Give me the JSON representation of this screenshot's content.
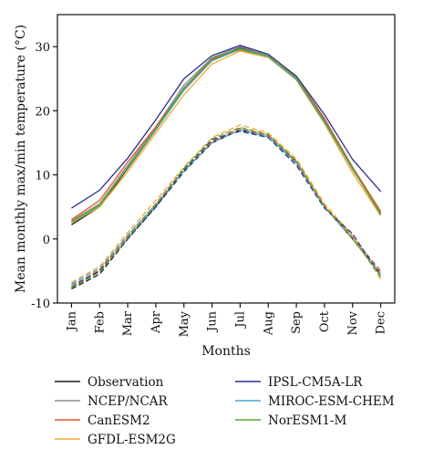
{
  "chart_data": {
    "type": "line",
    "title": "",
    "xlabel": "Months",
    "ylabel": "Mean monthly max/min temperature (°C)",
    "categories": [
      "Jan",
      "Feb",
      "Mar",
      "Apr",
      "May",
      "Jun",
      "Jul",
      "Aug",
      "Sep",
      "Oct",
      "Nov",
      "Dec"
    ],
    "ylim": [
      -10,
      35
    ],
    "yticks": [
      -10,
      0,
      10,
      20,
      30
    ],
    "grid": false,
    "legend_position": "bottom",
    "series": [
      {
        "name": "Observation",
        "color": "#1a1a1a",
        "max": [
          2.2,
          5.0,
          11.0,
          17.0,
          23.5,
          28.0,
          29.8,
          28.5,
          25.0,
          18.5,
          11.0,
          4.0
        ],
        "min": [
          -7.8,
          -5.5,
          0.0,
          5.0,
          10.5,
          15.0,
          17.0,
          16.0,
          12.0,
          5.0,
          0.0,
          -5.5
        ]
      },
      {
        "name": "NCEP/NCAR",
        "color": "#8c8c8c",
        "max": [
          2.8,
          5.5,
          11.5,
          17.5,
          24.0,
          28.3,
          30.0,
          28.6,
          25.0,
          18.3,
          10.8,
          4.2
        ],
        "min": [
          -7.2,
          -5.0,
          0.3,
          5.2,
          10.8,
          15.3,
          17.2,
          16.0,
          11.8,
          5.0,
          0.2,
          -5.3
        ]
      },
      {
        "name": "CanESM2",
        "color": "#e2532a",
        "max": [
          3.0,
          6.0,
          12.0,
          17.5,
          23.5,
          28.0,
          29.5,
          28.4,
          25.3,
          18.8,
          11.2,
          4.3
        ],
        "min": [
          -7.5,
          -4.8,
          0.5,
          5.5,
          11.0,
          15.2,
          17.3,
          16.2,
          12.2,
          5.2,
          0.3,
          -5.0
        ]
      },
      {
        "name": "GFDL-ESM2G",
        "color": "#f2a930",
        "max": [
          2.5,
          5.0,
          10.5,
          16.5,
          22.5,
          27.3,
          29.3,
          28.3,
          24.8,
          18.0,
          10.3,
          3.6
        ],
        "min": [
          -6.8,
          -4.3,
          1.0,
          6.0,
          11.2,
          15.8,
          17.8,
          16.5,
          12.5,
          5.5,
          0.5,
          -6.3
        ]
      },
      {
        "name": "IPSL-CM5A-LR",
        "color": "#2b2f8f",
        "max": [
          4.8,
          7.6,
          12.6,
          18.6,
          25.0,
          28.6,
          30.2,
          28.8,
          25.4,
          19.4,
          12.4,
          7.4
        ],
        "min": [
          -7.5,
          -5.0,
          0.0,
          5.0,
          10.8,
          15.5,
          16.8,
          15.8,
          11.5,
          4.8,
          0.8,
          -5.8
        ]
      },
      {
        "name": "MIROC-ESM-CHEM",
        "color": "#46a7c9",
        "max": [
          2.6,
          5.2,
          11.2,
          17.0,
          23.2,
          27.8,
          29.6,
          28.4,
          24.9,
          18.2,
          10.9,
          3.9
        ],
        "min": [
          -7.0,
          -4.6,
          0.6,
          5.4,
          10.6,
          15.0,
          17.0,
          15.9,
          11.9,
          5.0,
          0.0,
          -5.6
        ]
      },
      {
        "name": "NorESM1-M",
        "color": "#5ca832",
        "max": [
          2.6,
          5.3,
          11.1,
          17.2,
          23.6,
          28.2,
          29.7,
          28.5,
          25.1,
          18.4,
          11.0,
          3.8
        ],
        "min": [
          -7.6,
          -5.2,
          0.2,
          5.3,
          11.0,
          15.6,
          17.4,
          16.3,
          12.1,
          5.1,
          0.1,
          -5.9
        ]
      }
    ]
  }
}
